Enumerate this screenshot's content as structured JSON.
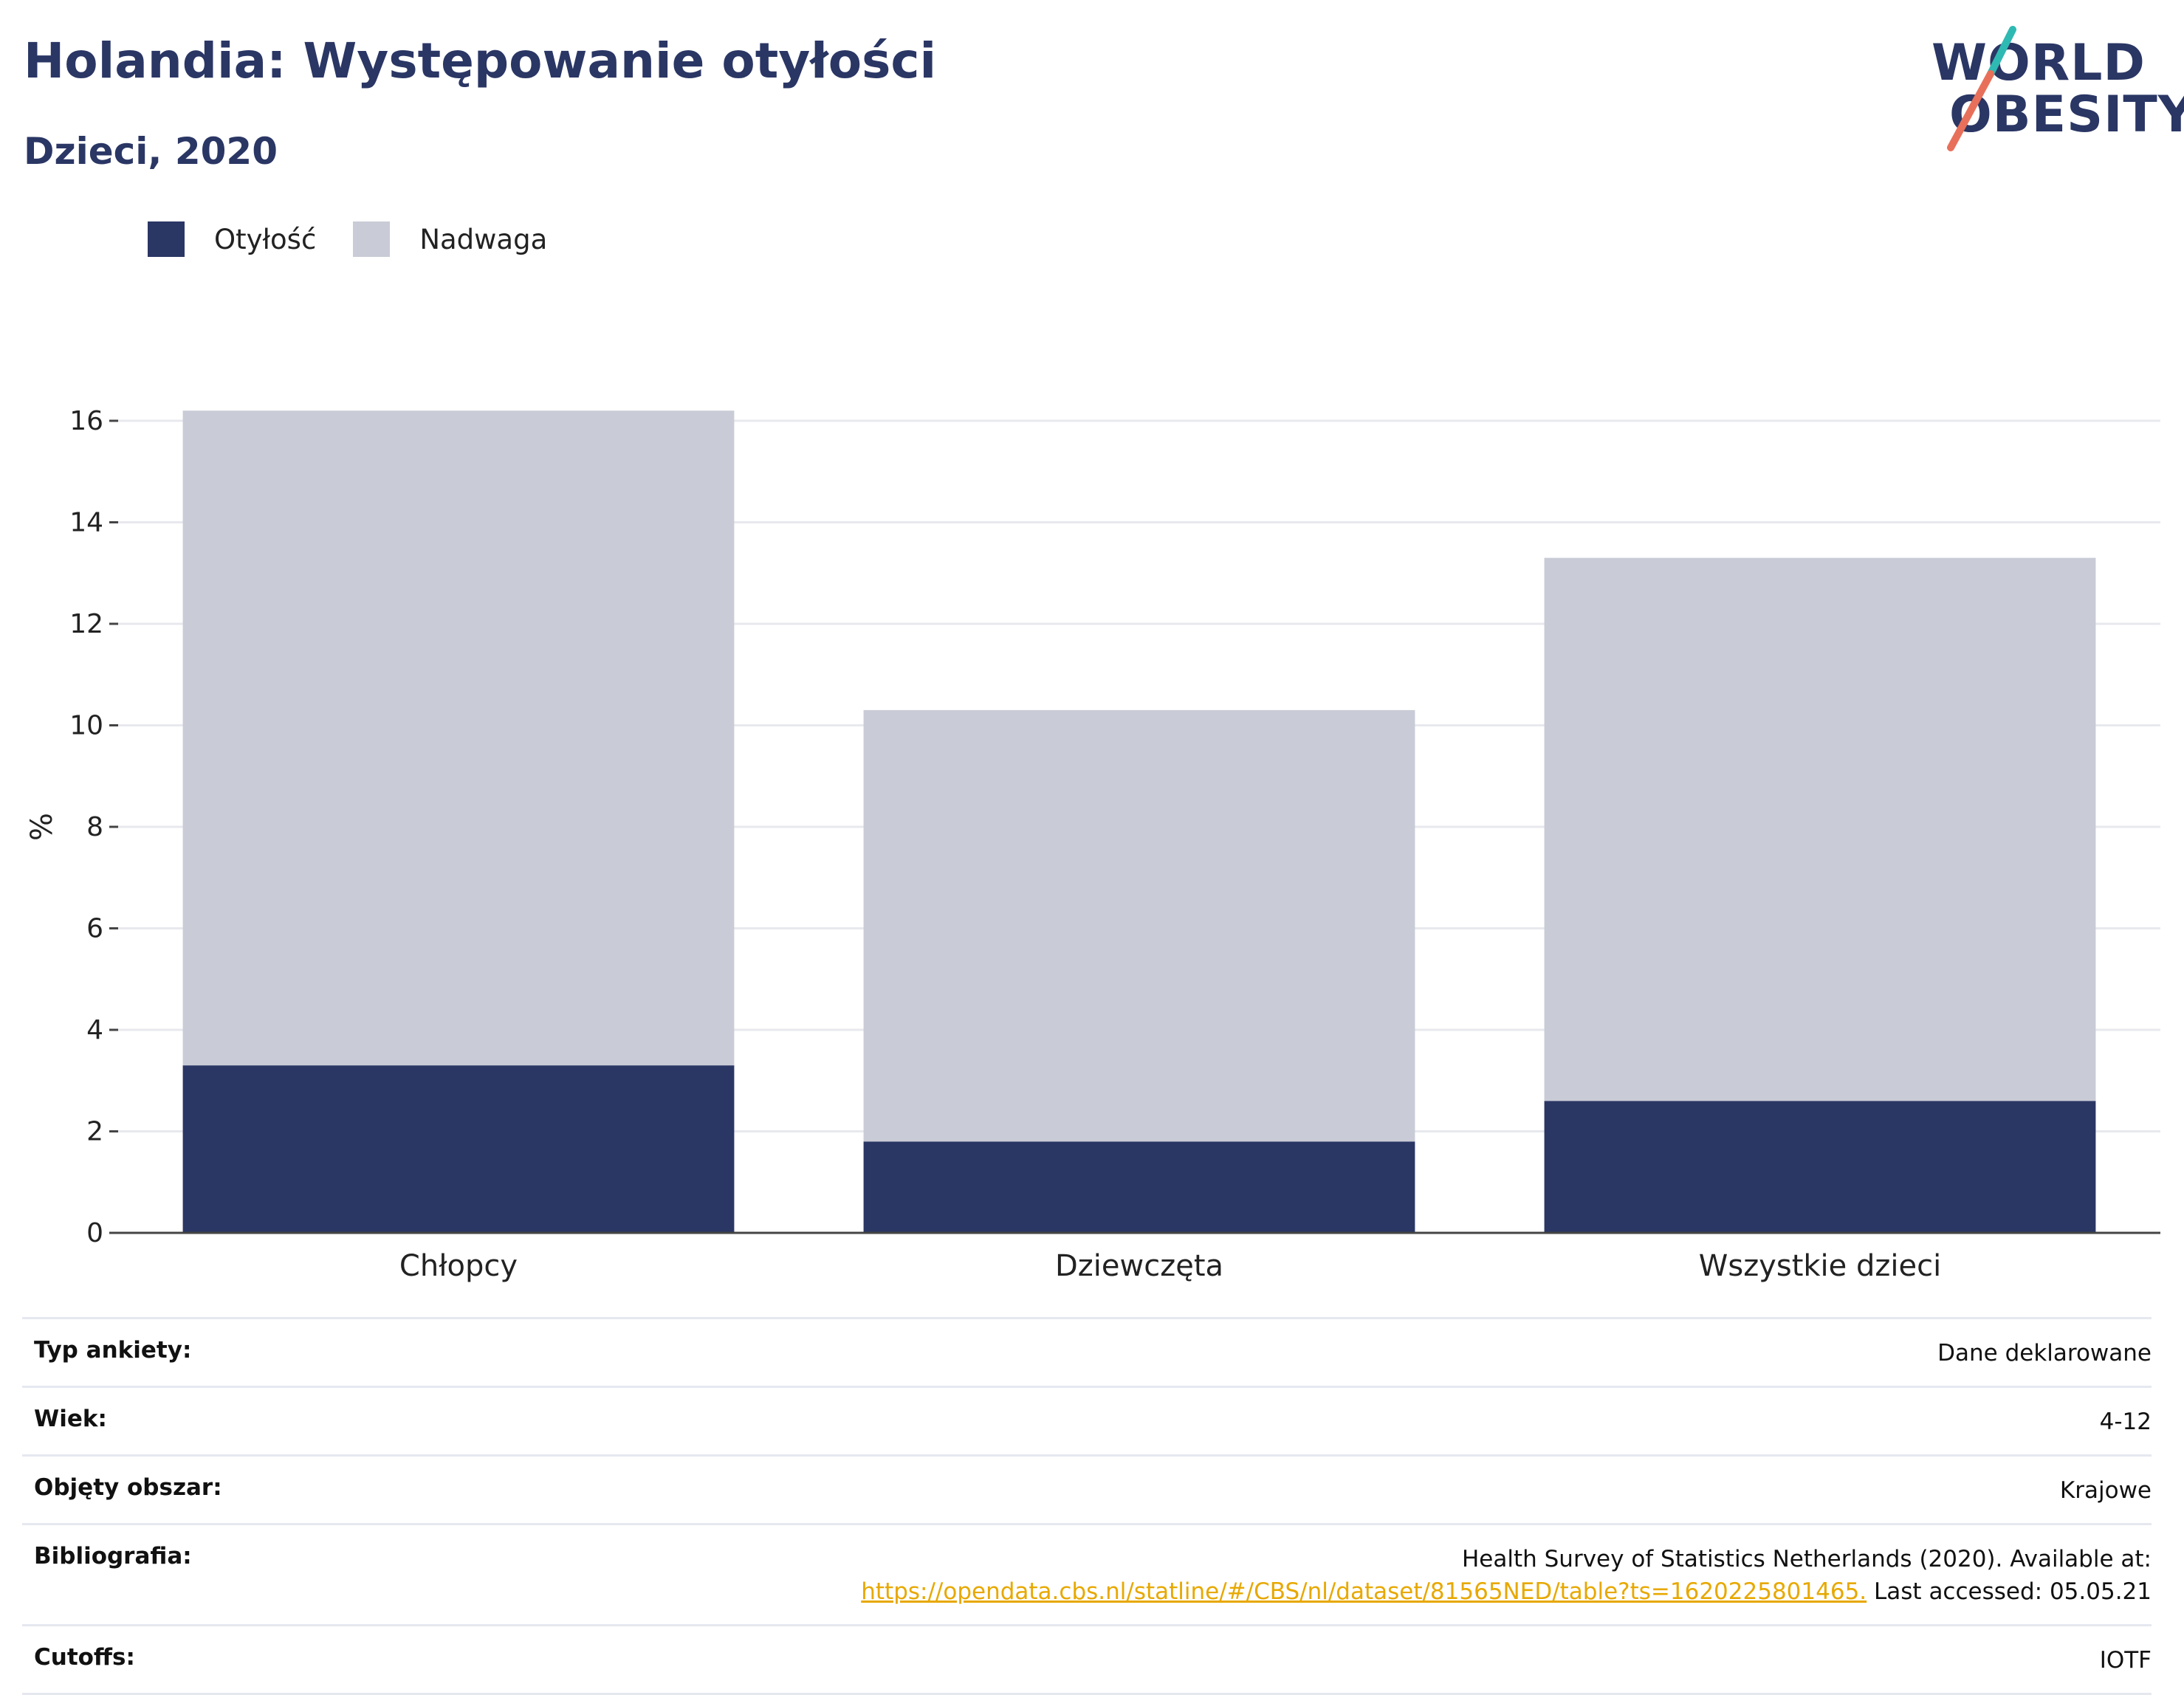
{
  "header": {
    "title": "Holandia: Występowanie otyłości",
    "subtitle": "Dzieci, 2020"
  },
  "logo": {
    "line1": "WORLD",
    "line2": "OBESITY"
  },
  "legend": [
    {
      "label": "Otyłość",
      "color": "#2a3664"
    },
    {
      "label": "Nadwaga",
      "color": "#c9cbd6"
    }
  ],
  "chart_data": {
    "type": "bar",
    "stacked": true,
    "categories": [
      "Chłopcy",
      "Dziewczęta",
      "Wszystkie dzieci"
    ],
    "series": [
      {
        "name": "Otyłość",
        "values": [
          3.3,
          1.8,
          2.6
        ],
        "color": "#2a3664"
      },
      {
        "name": "Nadwaga",
        "values": [
          12.9,
          8.5,
          10.7
        ],
        "color": "#c9cbd6"
      }
    ],
    "ylabel": "%",
    "ylim": [
      0,
      16
    ],
    "yticks": [
      0,
      2,
      4,
      6,
      8,
      10,
      12,
      14,
      16
    ],
    "grid": true,
    "legend_position": "top-left"
  },
  "info": {
    "survey_type": {
      "key": "Typ ankiety:",
      "value": "Dane deklarowane"
    },
    "age": {
      "key": "Wiek:",
      "value": "4-12"
    },
    "area": {
      "key": "Objęty obszar:",
      "value": "Krajowe"
    },
    "bibliography": {
      "key": "Bibliografia:",
      "line1": "Health Survey of Statistics Netherlands (2020). Available at:",
      "link": "https://opendata.cbs.nl/statline/#/CBS/nl/dataset/81565NED/table?ts=1620225801465.",
      "suffix": " Last accessed: 05.05.21"
    },
    "cutoffs": {
      "key": "Cutoffs:",
      "value": "IOTF"
    }
  }
}
